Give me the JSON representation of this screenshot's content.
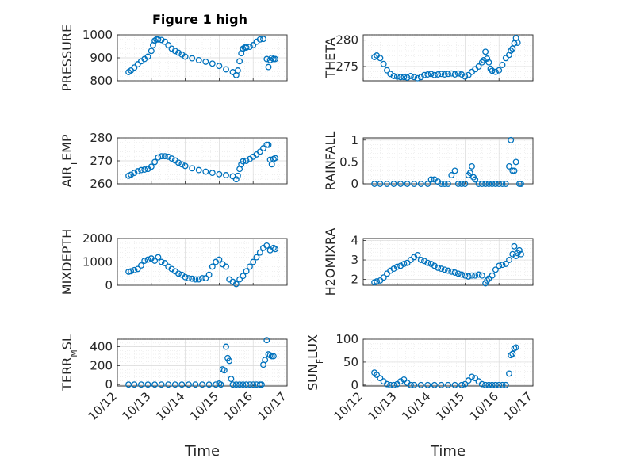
{
  "figure_title": "Figure 1 high",
  "colors": {
    "marker": "#0072BD",
    "axis": "#262626",
    "grid": "#d9d9d9",
    "background": "#ffffff"
  },
  "chart_data": [
    {
      "type": "scatter",
      "id": "pressure",
      "ylabel": "PRESSURE",
      "ylabel_html": [
        "PRESSURE"
      ],
      "xlabel": "",
      "title": "Figure 1 high",
      "xlim": [
        0,
        5
      ],
      "ylim": [
        800,
        1000
      ],
      "yticks": [
        800,
        900,
        1000
      ],
      "ytick_labels": [
        "800",
        "900",
        "1000"
      ],
      "x": [
        0.33,
        0.4,
        0.5,
        0.6,
        0.7,
        0.8,
        0.9,
        1.0,
        1.05,
        1.1,
        1.15,
        1.2,
        1.3,
        1.4,
        1.5,
        1.6,
        1.7,
        1.8,
        1.9,
        2.0,
        2.2,
        2.4,
        2.6,
        2.8,
        3.0,
        3.2,
        3.4,
        3.5,
        3.55,
        3.6,
        3.65,
        3.7,
        3.75,
        3.8,
        3.9,
        4.0,
        4.1,
        4.2,
        4.3,
        4.4,
        4.45,
        4.5,
        4.55,
        4.6,
        4.65
      ],
      "y": [
        838,
        845,
        858,
        872,
        885,
        895,
        905,
        930,
        955,
        975,
        980,
        980,
        978,
        970,
        955,
        940,
        930,
        922,
        915,
        905,
        898,
        890,
        883,
        875,
        865,
        850,
        838,
        825,
        845,
        885,
        920,
        940,
        945,
        945,
        948,
        955,
        970,
        980,
        982,
        895,
        860,
        890,
        900,
        895,
        895
      ]
    },
    {
      "type": "scatter",
      "id": "theta",
      "ylabel": "THETA",
      "xlabel": "",
      "xlim": [
        0,
        5
      ],
      "ylim": [
        272.3,
        281
      ],
      "yticks": [
        275,
        280
      ],
      "ytick_labels": [
        "275",
        "280"
      ],
      "x": [
        0.33,
        0.4,
        0.5,
        0.6,
        0.7,
        0.8,
        0.9,
        1.0,
        1.1,
        1.2,
        1.3,
        1.4,
        1.5,
        1.6,
        1.7,
        1.8,
        1.9,
        2.0,
        2.1,
        2.2,
        2.3,
        2.4,
        2.5,
        2.6,
        2.7,
        2.8,
        2.9,
        3.0,
        3.1,
        3.2,
        3.3,
        3.4,
        3.5,
        3.55,
        3.6,
        3.65,
        3.7,
        3.75,
        3.8,
        3.9,
        4.0,
        4.1,
        4.2,
        4.3,
        4.35,
        4.4,
        4.45,
        4.5,
        4.55
      ],
      "y": [
        276.8,
        277.1,
        276.6,
        275.5,
        274.3,
        273.6,
        273.2,
        273.1,
        273.0,
        273.0,
        272.9,
        273.2,
        273.0,
        272.8,
        273.0,
        273.4,
        273.5,
        273.6,
        273.4,
        273.5,
        273.6,
        273.5,
        273.6,
        273.7,
        273.5,
        273.7,
        273.5,
        273.1,
        273.4,
        274.0,
        274.5,
        275.0,
        275.8,
        276.2,
        277.8,
        276.5,
        275.8,
        274.6,
        274.2,
        274.0,
        274.3,
        275.3,
        276.6,
        277.2,
        278.0,
        278.4,
        279.4,
        280.4,
        279.5
      ]
    },
    {
      "type": "scatter",
      "id": "air_temp",
      "ylabel": "AIR_TEMP",
      "ylabel_html": [
        "AIR",
        "T",
        "EMP"
      ],
      "xlabel": "",
      "xlim": [
        0,
        5
      ],
      "ylim": [
        260,
        280
      ],
      "yticks": [
        260,
        270,
        280
      ],
      "ytick_labels": [
        "260",
        "270",
        "280"
      ],
      "x": [
        0.33,
        0.4,
        0.5,
        0.6,
        0.7,
        0.8,
        0.9,
        1.0,
        1.1,
        1.2,
        1.3,
        1.4,
        1.5,
        1.6,
        1.7,
        1.8,
        1.9,
        2.0,
        2.2,
        2.4,
        2.6,
        2.8,
        3.0,
        3.2,
        3.4,
        3.5,
        3.55,
        3.6,
        3.65,
        3.7,
        3.8,
        3.9,
        4.0,
        4.1,
        4.2,
        4.3,
        4.4,
        4.45,
        4.5,
        4.55,
        4.6,
        4.65
      ],
      "y": [
        263.5,
        264.0,
        264.8,
        265.5,
        266.0,
        266.2,
        266.5,
        267.5,
        269.5,
        271.5,
        272.0,
        272.0,
        271.8,
        271.0,
        270.2,
        269.2,
        268.5,
        267.8,
        266.8,
        266.0,
        265.3,
        264.8,
        264.2,
        263.8,
        263.3,
        262.0,
        263.5,
        266.5,
        268.5,
        269.8,
        270.0,
        270.8,
        271.8,
        272.8,
        274.0,
        275.5,
        277.0,
        277.0,
        270.5,
        268.5,
        270.8,
        271.2
      ]
    },
    {
      "type": "scatter",
      "id": "rainfall",
      "ylabel": "RAINFALL",
      "xlabel": "",
      "xlim": [
        0,
        5
      ],
      "ylim": [
        0,
        1.05
      ],
      "yticks": [
        0,
        0.5,
        1
      ],
      "ytick_labels": [
        "0",
        "0.5",
        "1"
      ],
      "x": [
        0.33,
        0.5,
        0.7,
        0.9,
        1.1,
        1.3,
        1.5,
        1.7,
        1.9,
        2.0,
        2.1,
        2.2,
        2.3,
        2.4,
        2.5,
        2.6,
        2.7,
        2.8,
        2.9,
        3.0,
        3.1,
        3.15,
        3.2,
        3.25,
        3.3,
        3.4,
        3.5,
        3.6,
        3.7,
        3.8,
        3.9,
        4.0,
        4.1,
        4.2,
        4.3,
        4.35,
        4.4,
        4.45,
        4.5,
        4.6,
        4.65
      ],
      "y": [
        0,
        0,
        0,
        0,
        0,
        0,
        0,
        0,
        0,
        0.1,
        0.1,
        0.05,
        0,
        0,
        0,
        0.2,
        0.3,
        0,
        0,
        0,
        0.2,
        0.25,
        0.4,
        0.15,
        0.1,
        0,
        0,
        0,
        0,
        0,
        0,
        0,
        0,
        0,
        0.4,
        1.0,
        0.3,
        0.3,
        0.5,
        0,
        0
      ]
    },
    {
      "type": "scatter",
      "id": "mixdepth",
      "ylabel": "MIXDEPTH",
      "xlabel": "",
      "xlim": [
        0,
        5
      ],
      "ylim": [
        0,
        2000
      ],
      "yticks": [
        0,
        1000,
        2000
      ],
      "ytick_labels": [
        "0",
        "1000",
        "2000"
      ],
      "x": [
        0.33,
        0.4,
        0.5,
        0.6,
        0.7,
        0.8,
        0.9,
        1.0,
        1.1,
        1.2,
        1.3,
        1.4,
        1.5,
        1.6,
        1.7,
        1.8,
        1.9,
        2.0,
        2.1,
        2.2,
        2.3,
        2.4,
        2.5,
        2.6,
        2.7,
        2.8,
        2.9,
        3.0,
        3.1,
        3.2,
        3.3,
        3.4,
        3.5,
        3.6,
        3.7,
        3.8,
        3.9,
        4.0,
        4.1,
        4.2,
        4.3,
        4.4,
        4.5,
        4.6,
        4.65
      ],
      "y": [
        580,
        600,
        650,
        700,
        850,
        1050,
        1100,
        1150,
        1050,
        1200,
        1000,
        950,
        800,
        700,
        600,
        500,
        450,
        350,
        300,
        280,
        250,
        250,
        300,
        300,
        450,
        800,
        1000,
        1100,
        900,
        800,
        250,
        150,
        50,
        250,
        400,
        600,
        800,
        1000,
        1200,
        1400,
        1600,
        1700,
        1500,
        1600,
        1550
      ]
    },
    {
      "type": "scatter",
      "id": "h2omixra",
      "ylabel": "H2OMIXRA",
      "xlabel": "",
      "xlim": [
        0,
        5
      ],
      "ylim": [
        1.7,
        4.1
      ],
      "yticks": [
        2,
        3,
        4
      ],
      "ytick_labels": [
        "2",
        "3",
        "4"
      ],
      "x": [
        0.33,
        0.4,
        0.5,
        0.6,
        0.7,
        0.8,
        0.9,
        1.0,
        1.1,
        1.2,
        1.3,
        1.4,
        1.5,
        1.6,
        1.7,
        1.8,
        1.9,
        2.0,
        2.1,
        2.2,
        2.3,
        2.4,
        2.5,
        2.6,
        2.7,
        2.8,
        2.9,
        3.0,
        3.1,
        3.2,
        3.3,
        3.4,
        3.5,
        3.6,
        3.65,
        3.7,
        3.8,
        3.9,
        4.0,
        4.1,
        4.2,
        4.3,
        4.4,
        4.45,
        4.5,
        4.55,
        4.6,
        4.65
      ],
      "y": [
        1.85,
        1.9,
        1.95,
        2.1,
        2.3,
        2.45,
        2.55,
        2.65,
        2.7,
        2.8,
        2.85,
        3.0,
        3.15,
        3.25,
        3.0,
        2.95,
        2.85,
        2.8,
        2.7,
        2.6,
        2.55,
        2.5,
        2.45,
        2.4,
        2.35,
        2.3,
        2.25,
        2.2,
        2.15,
        2.2,
        2.2,
        2.25,
        2.2,
        1.8,
        1.95,
        2.05,
        2.2,
        2.5,
        2.7,
        2.75,
        2.8,
        3.0,
        3.3,
        3.7,
        3.2,
        3.35,
        3.5,
        3.3
      ]
    },
    {
      "type": "scatter",
      "id": "terr_msl",
      "ylabel": "TERR_MSL",
      "ylabel_html": [
        "TERR",
        "M",
        "SL"
      ],
      "xlabel": "Time",
      "xlim": [
        0,
        5
      ],
      "ylim": [
        -15,
        480
      ],
      "yticks": [
        0,
        200,
        400
      ],
      "ytick_labels": [
        "0",
        "200",
        "400"
      ],
      "xticks": [
        0,
        1,
        2,
        3,
        4,
        5
      ],
      "xtick_labels": [
        "10/12",
        "10/13",
        "10/14",
        "10/15",
        "10/16",
        "10/17"
      ],
      "x": [
        0.33,
        0.5,
        0.7,
        0.9,
        1.1,
        1.3,
        1.5,
        1.7,
        1.9,
        2.1,
        2.3,
        2.5,
        2.7,
        2.9,
        3.0,
        3.05,
        3.1,
        3.15,
        3.2,
        3.25,
        3.3,
        3.35,
        3.4,
        3.5,
        3.6,
        3.7,
        3.8,
        3.9,
        4.0,
        4.1,
        4.2,
        4.25,
        4.3,
        4.35,
        4.4,
        4.45,
        4.5,
        4.55,
        4.6
      ],
      "y": [
        0,
        0,
        0,
        0,
        0,
        0,
        0,
        0,
        0,
        0,
        0,
        0,
        0,
        0,
        10,
        0,
        160,
        150,
        400,
        280,
        250,
        60,
        0,
        0,
        0,
        0,
        0,
        0,
        0,
        0,
        0,
        0,
        210,
        260,
        470,
        320,
        310,
        300,
        300
      ]
    },
    {
      "type": "scatter",
      "id": "sun_flux",
      "ylabel": "SUN_FLUX",
      "ylabel_html": [
        "SUN",
        "F",
        "LUX"
      ],
      "xlabel": "Time",
      "xlim": [
        0,
        5
      ],
      "ylim": [
        -2,
        100
      ],
      "yticks": [
        0,
        50,
        100
      ],
      "ytick_labels": [
        "0",
        "50",
        "100"
      ],
      "xticks": [
        0,
        1,
        2,
        3,
        4,
        5
      ],
      "xtick_labels": [
        "10/12",
        "10/13",
        "10/14",
        "10/15",
        "10/16",
        "10/17"
      ],
      "x": [
        0.33,
        0.4,
        0.5,
        0.6,
        0.7,
        0.8,
        0.9,
        1.0,
        1.1,
        1.2,
        1.3,
        1.4,
        1.5,
        1.7,
        1.9,
        2.1,
        2.3,
        2.5,
        2.7,
        2.9,
        3.0,
        3.1,
        3.2,
        3.3,
        3.4,
        3.5,
        3.6,
        3.7,
        3.8,
        3.9,
        4.0,
        4.1,
        4.2,
        4.3,
        4.35,
        4.4,
        4.45,
        4.5
      ],
      "y": [
        27,
        22,
        15,
        8,
        2,
        0,
        0,
        2,
        8,
        12,
        5,
        0,
        0,
        0,
        0,
        0,
        0,
        0,
        0,
        0,
        2,
        10,
        18,
        15,
        8,
        2,
        0,
        0,
        0,
        0,
        0,
        0,
        0,
        25,
        65,
        68,
        80,
        82
      ]
    }
  ]
}
